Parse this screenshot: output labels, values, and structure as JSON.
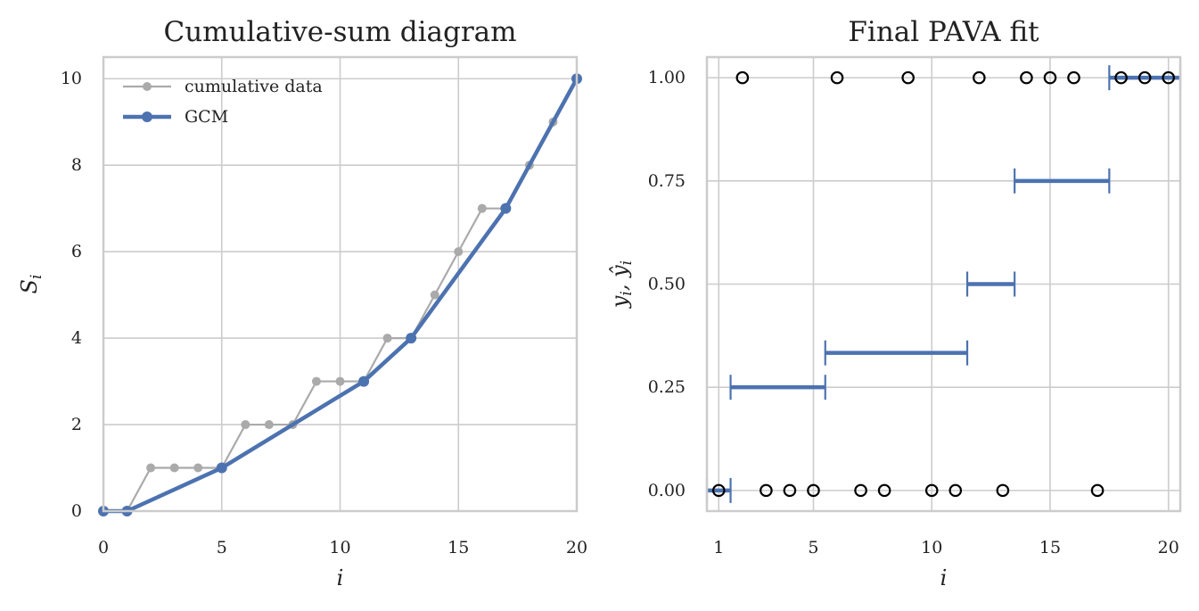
{
  "chart_data": [
    {
      "type": "line",
      "title": "Cumulative-sum diagram",
      "xlabel": "i",
      "ylabel": "S_i",
      "xlim": [
        0,
        20
      ],
      "ylim": [
        0,
        10.5
      ],
      "xticks": [
        0,
        5,
        10,
        15,
        20
      ],
      "xtick_labels": [
        "0",
        "5",
        "10",
        "15",
        "20"
      ],
      "yticks": [
        0,
        2,
        4,
        6,
        8,
        10
      ],
      "ytick_labels": [
        "0",
        "2",
        "4",
        "6",
        "8",
        "10"
      ],
      "grid": true,
      "legend": "top-left",
      "series": [
        {
          "name": "cumulative data",
          "color": "#aaaaaa",
          "x": [
            0,
            1,
            2,
            3,
            4,
            5,
            6,
            7,
            8,
            9,
            10,
            11,
            12,
            13,
            14,
            15,
            16,
            17,
            18,
            19,
            20
          ],
          "y": [
            0,
            0,
            1,
            1,
            1,
            1,
            2,
            2,
            2,
            3,
            3,
            3,
            4,
            4,
            5,
            6,
            7,
            7,
            8,
            9,
            10
          ]
        },
        {
          "name": "GCM",
          "color": "#4c72b0",
          "x": [
            0,
            1,
            5,
            11,
            13,
            17,
            20
          ],
          "y": [
            0,
            0,
            1,
            3,
            4,
            7,
            10
          ]
        }
      ]
    },
    {
      "type": "scatter",
      "title": "Final PAVA fit",
      "xlabel": "i",
      "ylabel": "y_i, ŷ_i",
      "xlim": [
        0.5,
        20.5
      ],
      "ylim": [
        -0.05,
        1.05
      ],
      "xticks": [
        1,
        5,
        10,
        15,
        20
      ],
      "xtick_labels": [
        "1",
        "5",
        "10",
        "15",
        "20"
      ],
      "yticks": [
        0,
        0.25,
        0.5,
        0.75,
        1.0
      ],
      "ytick_labels": [
        "0.00",
        "0.25",
        "0.50",
        "0.75",
        "1.00"
      ],
      "grid": true,
      "data_points": {
        "marker": "open-circle",
        "color": "#000000",
        "x": [
          1,
          2,
          3,
          4,
          5,
          6,
          7,
          8,
          9,
          10,
          11,
          12,
          13,
          14,
          15,
          16,
          17,
          18,
          19,
          20
        ],
        "y": [
          0,
          1,
          0,
          0,
          0,
          1,
          0,
          0,
          1,
          0,
          0,
          1,
          0,
          1,
          1,
          1,
          0,
          1,
          1,
          1
        ]
      },
      "fit_segments": {
        "color": "#4c72b0",
        "segments": [
          {
            "x_start": 0.5,
            "x_end": 1.5,
            "y": 0.0
          },
          {
            "x_start": 1.5,
            "x_end": 5.5,
            "y": 0.25
          },
          {
            "x_start": 5.5,
            "x_end": 11.5,
            "y": 0.3333
          },
          {
            "x_start": 11.5,
            "x_end": 13.5,
            "y": 0.5
          },
          {
            "x_start": 13.5,
            "x_end": 17.5,
            "y": 0.75
          },
          {
            "x_start": 17.5,
            "x_end": 20.5,
            "y": 1.0
          }
        ]
      }
    }
  ]
}
